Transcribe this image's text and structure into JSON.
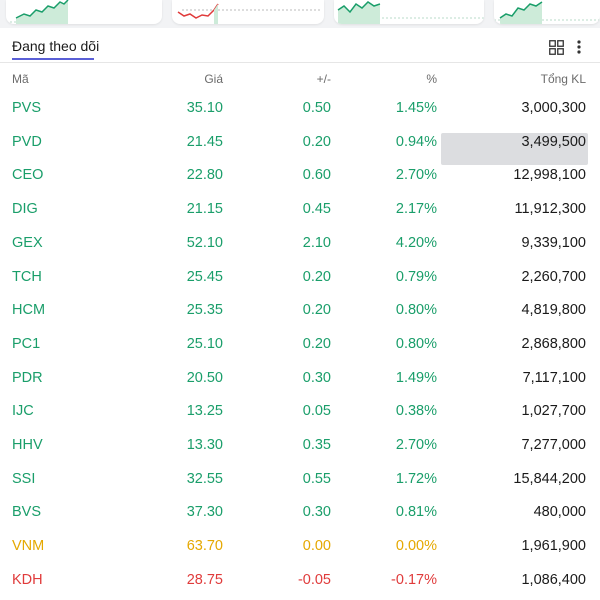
{
  "app": {
    "tab_label": "Đang theo dõi",
    "icons": {
      "layout": "grid-icon",
      "menu": "more-vertical-icon"
    }
  },
  "colors": {
    "up": "#1a9e6a",
    "down": "#e03b3b",
    "ref": "#e5a800",
    "accent": "#5a5fd6",
    "highlight": "#dcdde0"
  },
  "table": {
    "headers": {
      "code": "Mã",
      "price": "Giá",
      "change": "+/-",
      "percent": "%",
      "volume": "Tổng KL"
    },
    "rows": [
      {
        "code": "PVS",
        "price": "35.10",
        "change": "0.50",
        "percent": "1.45%",
        "volume": "3,000,300",
        "trend": "up"
      },
      {
        "code": "PVD",
        "price": "21.45",
        "change": "0.20",
        "percent": "0.94%",
        "volume": "3,499,500",
        "trend": "up"
      },
      {
        "code": "CEO",
        "price": "22.80",
        "change": "0.60",
        "percent": "2.70%",
        "volume": "12,998,100",
        "trend": "up"
      },
      {
        "code": "DIG",
        "price": "21.15",
        "change": "0.45",
        "percent": "2.17%",
        "volume": "11,912,300",
        "trend": "up"
      },
      {
        "code": "GEX",
        "price": "52.10",
        "change": "2.10",
        "percent": "4.20%",
        "volume": "9,339,100",
        "trend": "up",
        "highlighted": true
      },
      {
        "code": "TCH",
        "price": "25.45",
        "change": "0.20",
        "percent": "0.79%",
        "volume": "2,260,700",
        "trend": "up"
      },
      {
        "code": "HCM",
        "price": "25.35",
        "change": "0.20",
        "percent": "0.80%",
        "volume": "4,819,800",
        "trend": "up"
      },
      {
        "code": "PC1",
        "price": "25.10",
        "change": "0.20",
        "percent": "0.80%",
        "volume": "2,868,800",
        "trend": "up"
      },
      {
        "code": "PDR",
        "price": "20.50",
        "change": "0.30",
        "percent": "1.49%",
        "volume": "7,117,100",
        "trend": "up"
      },
      {
        "code": "IJC",
        "price": "13.25",
        "change": "0.05",
        "percent": "0.38%",
        "volume": "1,027,700",
        "trend": "up"
      },
      {
        "code": "HHV",
        "price": "13.30",
        "change": "0.35",
        "percent": "2.70%",
        "volume": "7,277,000",
        "trend": "up"
      },
      {
        "code": "SSI",
        "price": "32.55",
        "change": "0.55",
        "percent": "1.72%",
        "volume": "15,844,200",
        "trend": "up"
      },
      {
        "code": "BVS",
        "price": "37.30",
        "change": "0.30",
        "percent": "0.81%",
        "volume": "480,000",
        "trend": "up"
      },
      {
        "code": "VNM",
        "price": "63.70",
        "change": "0.00",
        "percent": "0.00%",
        "volume": "1,961,900",
        "trend": "ref"
      },
      {
        "code": "KDH",
        "price": "28.75",
        "change": "-0.05",
        "percent": "-0.17%",
        "volume": "1,086,400",
        "trend": "down"
      }
    ]
  }
}
